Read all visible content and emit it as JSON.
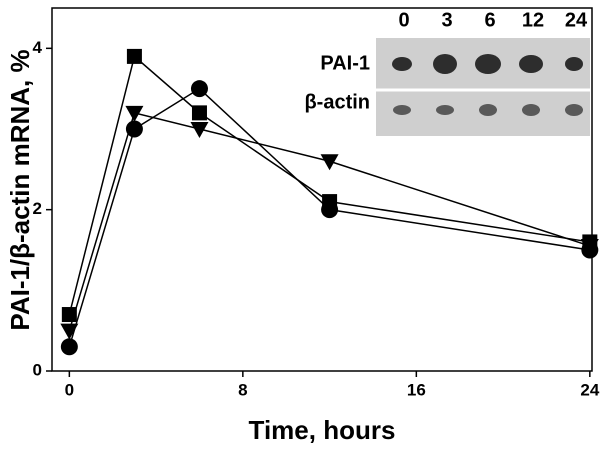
{
  "chart_data": {
    "type": "line",
    "x_label": "Time, hours",
    "y_label": "PAI-1/β-actin mRNA, %",
    "x": [
      0,
      3,
      6,
      12,
      24
    ],
    "series": [
      {
        "color": "#000000",
        "marker": "square",
        "values": [
          0.7,
          3.9,
          3.2,
          2.1,
          1.6
        ]
      },
      {
        "color": "#000000",
        "marker": "circle",
        "values": [
          0.3,
          3.0,
          3.5,
          2.0,
          1.5
        ]
      },
      {
        "color": "#000000",
        "marker": "triangle-down",
        "values": [
          0.5,
          3.2,
          3.0,
          2.6,
          1.55
        ]
      }
    ],
    "xlim": [
      -0.8,
      24.1
    ],
    "ylim": [
      0,
      4.5
    ],
    "xticks": [
      0,
      8,
      16,
      24
    ],
    "yticks": [
      0,
      2,
      4
    ],
    "grid": false,
    "inset": {
      "lanes": [
        "0",
        "3",
        "6",
        "12",
        "24"
      ],
      "rows": [
        "PAI-1",
        "β-actin"
      ]
    }
  }
}
